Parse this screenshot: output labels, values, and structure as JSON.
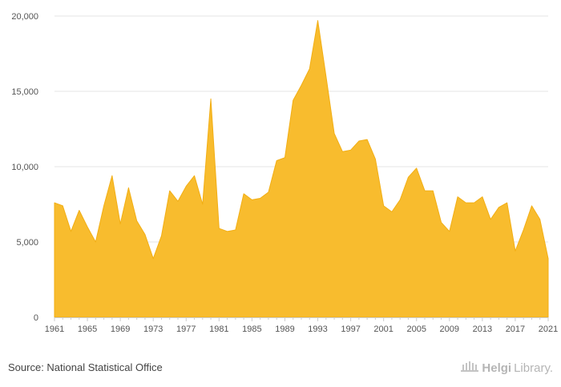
{
  "chart_data": {
    "type": "area",
    "title": "",
    "xlabel": "",
    "ylabel": "",
    "x": [
      1961,
      1962,
      1963,
      1964,
      1965,
      1966,
      1967,
      1968,
      1969,
      1970,
      1971,
      1972,
      1973,
      1974,
      1975,
      1976,
      1977,
      1978,
      1979,
      1980,
      1981,
      1982,
      1983,
      1984,
      1985,
      1986,
      1987,
      1988,
      1989,
      1990,
      1991,
      1992,
      1993,
      1994,
      1995,
      1996,
      1997,
      1998,
      1999,
      2000,
      2001,
      2002,
      2003,
      2004,
      2005,
      2006,
      2007,
      2008,
      2009,
      2010,
      2011,
      2012,
      2013,
      2014,
      2015,
      2016,
      2017,
      2018,
      2019,
      2020,
      2021
    ],
    "values": [
      7600,
      7400,
      5700,
      7100,
      6000,
      5000,
      7400,
      9400,
      6200,
      8600,
      6400,
      5500,
      3900,
      5400,
      8400,
      7700,
      8700,
      9400,
      7500,
      14500,
      5900,
      5700,
      5800,
      8200,
      7800,
      7900,
      8300,
      10400,
      10600,
      14400,
      15400,
      16500,
      19700,
      16000,
      12200,
      11000,
      11100,
      11700,
      11800,
      10500,
      7400,
      7000,
      7800,
      9300,
      9900,
      8400,
      8400,
      6300,
      5700,
      8000,
      7600,
      7600,
      8000,
      6500,
      7300,
      7600,
      4400,
      5800,
      7400,
      6500,
      3900
    ],
    "xticks": [
      1961,
      1965,
      1969,
      1973,
      1977,
      1981,
      1985,
      1989,
      1993,
      1997,
      2001,
      2005,
      2009,
      2013,
      2017,
      2021
    ],
    "ylim": [
      0,
      20000
    ],
    "yticks": [
      0,
      5000,
      10000,
      15000,
      20000
    ],
    "ytick_labels": [
      "0",
      "5,000",
      "10,000",
      "15,000",
      "20,000"
    ],
    "grid": "horizontal",
    "colors": {
      "fill": "#f8bc2e",
      "stroke": "#f2ae14",
      "grid": "#e6e6e6",
      "axis": "#cccccc"
    }
  },
  "footer": {
    "source": "Source: National Statistical Office",
    "brand_bold": "Helgi",
    "brand_light": "Library."
  },
  "icons": {
    "brand": "library-building-icon"
  }
}
